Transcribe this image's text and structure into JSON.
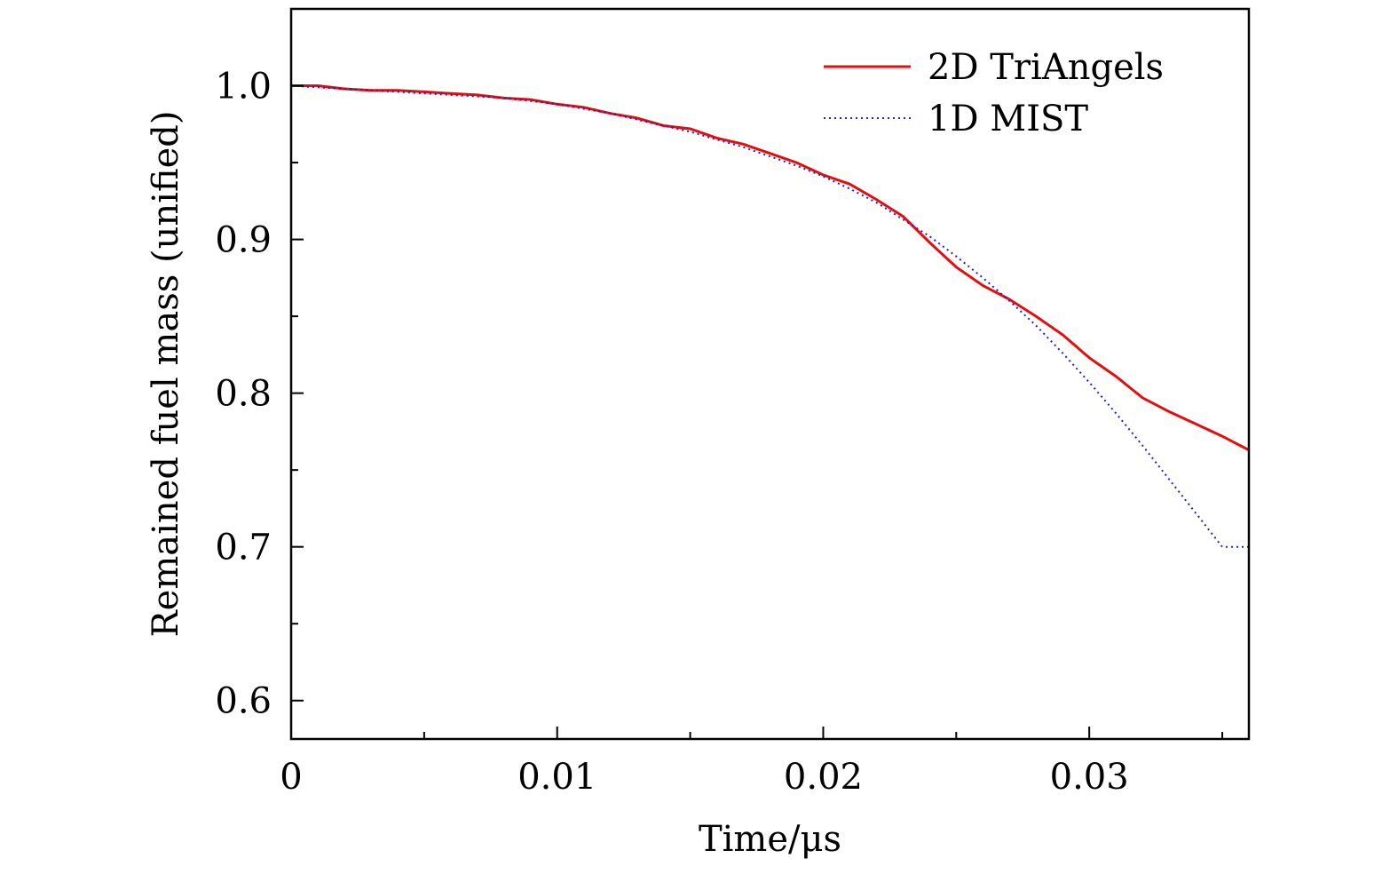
{
  "chart_data": {
    "type": "line",
    "title": "",
    "xlabel": "Time/μs",
    "ylabel": "Remained fuel mass (unified)",
    "xlim": [
      0,
      0.036
    ],
    "ylim": [
      0.575,
      1.05
    ],
    "x_ticks": [
      {
        "value": 0,
        "label": "0"
      },
      {
        "value": 0.01,
        "label": "0.01"
      },
      {
        "value": 0.02,
        "label": "0.02"
      },
      {
        "value": 0.03,
        "label": "0.03"
      }
    ],
    "x_minor_ticks": [
      0.005,
      0.015,
      0.025,
      0.035
    ],
    "y_ticks": [
      {
        "value": 0.6,
        "label": "0.6"
      },
      {
        "value": 0.7,
        "label": "0.7"
      },
      {
        "value": 0.8,
        "label": "0.8"
      },
      {
        "value": 0.9,
        "label": "0.9"
      },
      {
        "value": 1.0,
        "label": "1.0"
      }
    ],
    "y_minor_ticks": [
      0.65,
      0.75,
      0.85,
      0.95
    ],
    "grid": false,
    "legend_position": "top-right",
    "series": [
      {
        "name": "2D TriAngels",
        "color": "#e01010",
        "style": "solid",
        "x": [
          0,
          0.001,
          0.002,
          0.003,
          0.004,
          0.005,
          0.006,
          0.007,
          0.008,
          0.009,
          0.01,
          0.011,
          0.012,
          0.013,
          0.014,
          0.015,
          0.016,
          0.017,
          0.018,
          0.019,
          0.02,
          0.021,
          0.022,
          0.023,
          0.024,
          0.025,
          0.026,
          0.027,
          0.028,
          0.029,
          0.03,
          0.031,
          0.032,
          0.033,
          0.034,
          0.035,
          0.036
        ],
        "y": [
          1.0,
          1.0,
          0.998,
          0.997,
          0.997,
          0.996,
          0.995,
          0.994,
          0.992,
          0.991,
          0.988,
          0.986,
          0.982,
          0.979,
          0.974,
          0.972,
          0.966,
          0.962,
          0.956,
          0.95,
          0.942,
          0.936,
          0.926,
          0.915,
          0.898,
          0.882,
          0.87,
          0.861,
          0.85,
          0.838,
          0.823,
          0.811,
          0.797,
          0.788,
          0.78,
          0.772,
          0.763
        ]
      },
      {
        "name": "1D MIST",
        "color": "#2020c0",
        "style": "dotted",
        "x": [
          0,
          0.001,
          0.002,
          0.003,
          0.004,
          0.005,
          0.006,
          0.007,
          0.008,
          0.009,
          0.01,
          0.011,
          0.012,
          0.013,
          0.014,
          0.015,
          0.016,
          0.017,
          0.018,
          0.019,
          0.02,
          0.021,
          0.022,
          0.023,
          0.024,
          0.025,
          0.026,
          0.027,
          0.028,
          0.029,
          0.03,
          0.031,
          0.032,
          0.033,
          0.034,
          0.035,
          0.036
        ],
        "y": [
          1.0,
          0.999,
          0.998,
          0.997,
          0.996,
          0.995,
          0.994,
          0.993,
          0.992,
          0.99,
          0.988,
          0.985,
          0.982,
          0.978,
          0.974,
          0.97,
          0.965,
          0.96,
          0.954,
          0.948,
          0.941,
          0.933,
          0.924,
          0.913,
          0.902,
          0.889,
          0.875,
          0.86,
          0.844,
          0.826,
          0.807,
          0.787,
          0.766,
          0.744,
          0.722,
          0.7,
          0.7
        ]
      }
    ]
  }
}
